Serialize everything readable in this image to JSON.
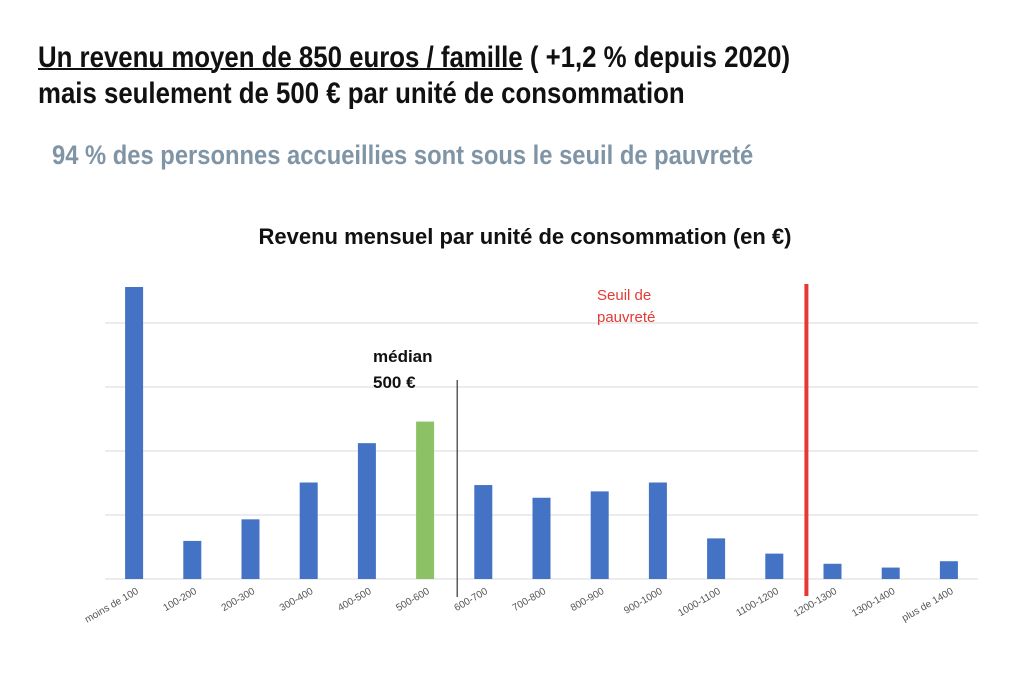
{
  "header": {
    "title_underlined": "Un revenu moyen de 850 euros / famille",
    "title_rest": " ( +1,2 % depuis 2020)",
    "title_line2": "mais seulement de 500 € par unité de consommation",
    "subtitle": "94 % des personnes accueillies sont sous le seuil de pauvreté"
  },
  "chart_data": {
    "type": "bar",
    "title": "Revenu mensuel par unité de consommation (en €)",
    "xlabel": "",
    "ylabel": "",
    "categories": [
      "moins de 100",
      "100-200",
      "200-300",
      "300-400",
      "400-500",
      "500-600",
      "600-700",
      "700-800",
      "800-900",
      "900-1000",
      "1000-1100",
      "1100-1200",
      "1200-1300",
      "1300-1400",
      "plus de 1400"
    ],
    "values": [
      23,
      3,
      4.7,
      7.6,
      10.7,
      12.4,
      7.4,
      6.4,
      6.9,
      7.6,
      3.2,
      2,
      1.2,
      0.9,
      1.4
    ],
    "ylim": [
      0,
      23
    ],
    "grid": true,
    "y_tick_labels_shown": false,
    "bar_color": "#4472c4",
    "highlight_category": "500-600",
    "highlight_color": "#8dc165",
    "median": {
      "label_line1": "médian",
      "label_line2": "500 €",
      "after_category": "500-600",
      "line_color": "#333333"
    },
    "poverty_line": {
      "label_line1": "Seuil de",
      "label_line2": "pauvreté",
      "after_category": "1100-1200",
      "color": "#e53935"
    }
  }
}
